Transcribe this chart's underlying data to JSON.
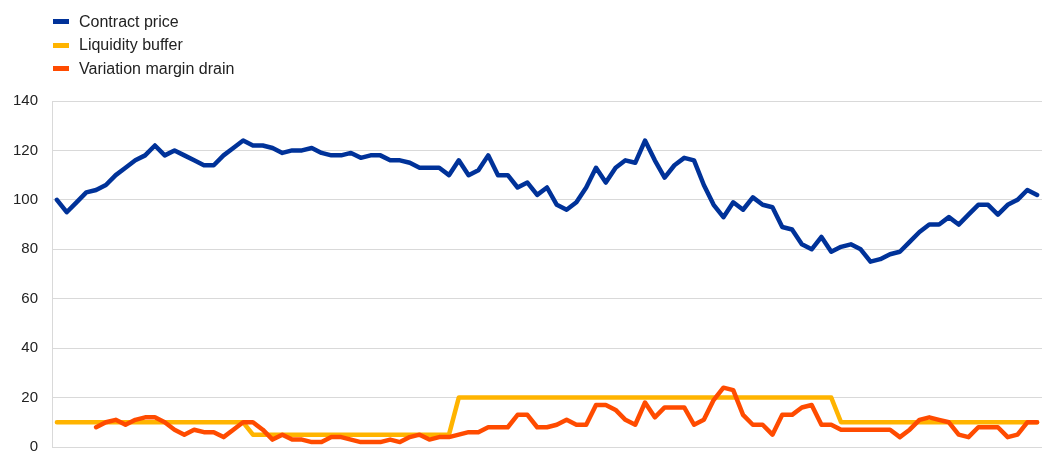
{
  "chart_data": {
    "type": "line",
    "categories": [
      null,
      null,
      null,
      null,
      null,
      null,
      null,
      null,
      null,
      null,
      null,
      null,
      null,
      null,
      null,
      null,
      null,
      null,
      null,
      null,
      null,
      null,
      null,
      null,
      null,
      null,
      null,
      null,
      null,
      null,
      null,
      null,
      null,
      null,
      null,
      null,
      null,
      null,
      null,
      null,
      null,
      null,
      null,
      null,
      null,
      null,
      null,
      null,
      null,
      null,
      null,
      null,
      null,
      null,
      null,
      null,
      null,
      null,
      null,
      null,
      null,
      null,
      null,
      null,
      null,
      null,
      null,
      null,
      null,
      null,
      null,
      null,
      null,
      null,
      null,
      null,
      null,
      null,
      null,
      null,
      null,
      null,
      null,
      null,
      null,
      null,
      null,
      null,
      null,
      null,
      null,
      null,
      null,
      null,
      null,
      null,
      null,
      null,
      null,
      null,
      null
    ],
    "series": [
      {
        "name": "Contract price",
        "color": "#003299",
        "values": [
          100,
          95,
          99,
          103,
          104,
          106,
          110,
          113,
          116,
          118,
          122,
          118,
          120,
          118,
          116,
          114,
          114,
          118,
          121,
          124,
          122,
          122,
          121,
          119,
          120,
          120,
          121,
          119,
          118,
          118,
          119,
          117,
          118,
          118,
          116,
          116,
          115,
          113,
          113,
          113,
          110,
          116,
          110,
          112,
          118,
          110,
          110,
          105,
          107,
          102,
          105,
          98,
          96,
          99,
          105,
          113,
          107,
          113,
          116,
          115,
          124,
          116,
          109,
          114,
          117,
          116,
          106,
          98,
          93,
          99,
          96,
          101,
          98,
          97,
          89,
          88,
          82,
          80,
          85,
          79,
          81,
          82,
          80,
          75,
          76,
          78,
          79,
          83,
          87,
          90,
          90,
          93,
          90,
          94,
          98,
          98,
          94,
          98,
          100,
          104,
          102
        ]
      },
      {
        "name": "Liquidity buffer",
        "color": "#ffb400",
        "values": [
          10,
          10,
          10,
          10,
          10,
          10,
          10,
          10,
          10,
          10,
          10,
          10,
          10,
          10,
          10,
          10,
          10,
          10,
          10,
          10,
          5,
          5,
          5,
          5,
          5,
          5,
          5,
          5,
          5,
          5,
          5,
          5,
          5,
          5,
          5,
          5,
          5,
          5,
          5,
          5,
          5,
          20,
          20,
          20,
          20,
          20,
          20,
          20,
          20,
          20,
          20,
          20,
          20,
          20,
          20,
          20,
          20,
          20,
          20,
          20,
          20,
          20,
          20,
          20,
          20,
          20,
          20,
          20,
          20,
          20,
          20,
          20,
          20,
          20,
          20,
          20,
          20,
          20,
          20,
          20,
          10,
          10,
          10,
          10,
          10,
          10,
          10,
          10,
          10,
          10,
          10,
          10,
          10,
          10,
          10,
          10,
          10,
          10,
          10,
          10,
          10
        ]
      },
      {
        "name": "Variation margin drain",
        "color": "#ff4b00",
        "values": [
          null,
          null,
          null,
          null,
          8,
          10,
          11,
          9,
          11,
          12,
          12,
          10,
          7,
          5,
          7,
          6,
          6,
          4,
          7,
          10,
          10,
          7,
          3,
          5,
          3,
          3,
          2,
          2,
          4,
          4,
          3,
          2,
          2,
          2,
          3,
          2,
          4,
          5,
          3,
          4,
          4,
          5,
          6,
          6,
          8,
          8,
          8,
          13,
          13,
          8,
          8,
          9,
          11,
          9,
          9,
          17,
          17,
          15,
          11,
          9,
          18,
          12,
          16,
          16,
          16,
          9,
          11,
          19,
          24,
          23,
          13,
          9,
          9,
          5,
          13,
          13,
          16,
          17,
          9,
          9,
          7,
          7,
          7,
          7,
          7,
          7,
          4,
          7,
          11,
          12,
          11,
          10,
          5,
          4,
          8,
          8,
          8,
          4,
          5,
          10,
          10
        ]
      }
    ],
    "ylim": [
      0,
      140
    ],
    "yticks": [
      0,
      20,
      40,
      60,
      80,
      100,
      120,
      140
    ],
    "grid": "y",
    "legend": "top left"
  }
}
